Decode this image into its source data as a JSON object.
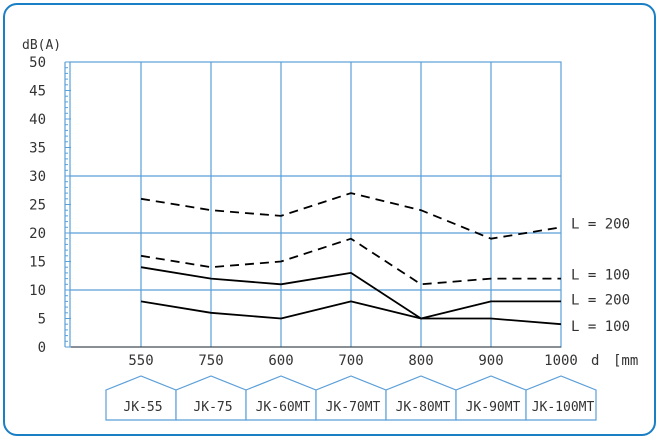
{
  "chart_data": {
    "type": "line",
    "ylabel": "dB(A)",
    "xlabel": "d",
    "xunit": "[mm",
    "ylim": [
      0,
      50
    ],
    "yticks": [
      "0",
      "5",
      "10",
      "15",
      "20",
      "25",
      "30",
      "35",
      "40",
      "45",
      "50"
    ],
    "categories": [
      "550",
      "750",
      "600",
      "700",
      "800",
      "900",
      "1000"
    ],
    "grid": true,
    "colors": {
      "frame": "#1a7fc4",
      "grid": "#5b9fd8",
      "line": "#000000",
      "product_tab": "#5b9fd8"
    },
    "series": [
      {
        "name": "L = 200",
        "style": "dashed",
        "values": [
          26,
          24,
          23,
          27,
          24,
          19,
          21
        ]
      },
      {
        "name": "L = 100",
        "style": "dashed",
        "values": [
          16,
          14,
          15,
          19,
          11,
          12,
          12
        ]
      },
      {
        "name": "L = 200",
        "style": "solid",
        "values": [
          14,
          12,
          11,
          13,
          5,
          8,
          8
        ]
      },
      {
        "name": "L = 100",
        "style": "solid",
        "values": [
          8,
          6,
          5,
          8,
          5,
          5,
          4
        ]
      }
    ],
    "products": [
      "JK-55",
      "JK-75",
      "JK-60MT",
      "JK-70MT",
      "JK-80MT",
      "JK-90MT",
      "JK-100MT"
    ]
  }
}
